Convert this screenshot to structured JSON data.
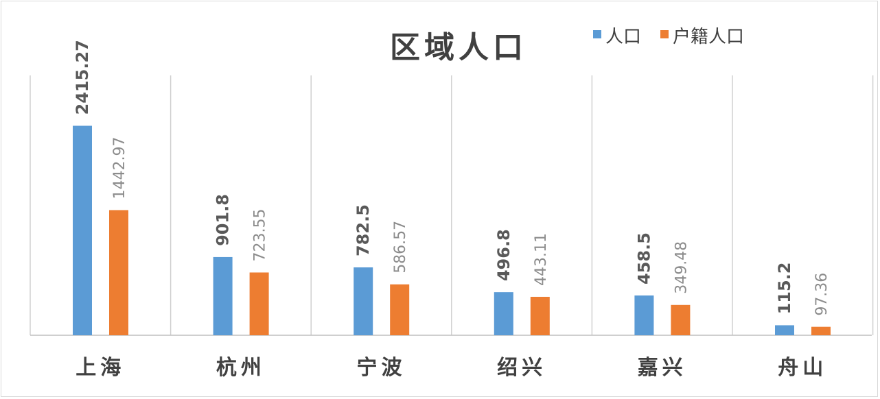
{
  "chart_data": {
    "type": "bar",
    "title": "区域人口",
    "categories": [
      "上海",
      "杭州",
      "宁波",
      "绍兴",
      "嘉兴",
      "舟山"
    ],
    "series": [
      {
        "name": "人口",
        "values": [
          2415.27,
          901.8,
          782.5,
          496.8,
          458.5,
          115.2
        ],
        "color": "#5b9bd5",
        "labels": [
          "2415.27",
          "901.8",
          "782.5",
          "496.8",
          "458.5",
          "115.2"
        ]
      },
      {
        "name": "户籍人口",
        "values": [
          1442.97,
          723.55,
          586.57,
          443.11,
          349.48,
          97.36
        ],
        "color": "#ed7d31",
        "labels": [
          "1442.97",
          "723.55",
          "586.57",
          "443.11",
          "349.48",
          "97.36"
        ]
      }
    ],
    "ylim": [
      0,
      3000
    ],
    "grid": "vertical category separators",
    "legend": "top-right",
    "data_labels": "rotated vertical above bars"
  }
}
